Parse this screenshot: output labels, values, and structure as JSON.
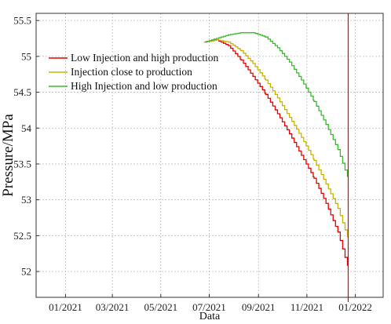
{
  "chart_data": {
    "type": "line",
    "title": "",
    "xlabel": "Data",
    "ylabel": "Pressure/MPa",
    "xlim": [
      "2020-11-25",
      "2022-02-05"
    ],
    "ylim": [
      51.64,
      55.6
    ],
    "x_ticks": [
      {
        "date": "2021-01-01",
        "label": "01/2021"
      },
      {
        "date": "2021-03-01",
        "label": "03/2021"
      },
      {
        "date": "2021-05-01",
        "label": "05/2021"
      },
      {
        "date": "2021-07-01",
        "label": "07/2021"
      },
      {
        "date": "2021-09-01",
        "label": "09/2021"
      },
      {
        "date": "2021-11-01",
        "label": "11/2021"
      },
      {
        "date": "2022-01-01",
        "label": "01/2022"
      }
    ],
    "y_ticks": [
      52,
      52.5,
      53,
      53.5,
      54,
      54.5,
      55,
      55.5
    ],
    "y_tick_labels": [
      "52",
      "52.5",
      "53",
      "53.5",
      "54",
      "54.5",
      "55",
      "55.5"
    ],
    "grid": true,
    "legend_position": "top-left",
    "vertical_marker": {
      "date": "2021-12-23",
      "color": "#e60000"
    },
    "series": [
      {
        "name": "Low Injection and high production",
        "color": "#e60000",
        "points": [
          [
            "2021-06-25",
            55.2
          ],
          [
            "2021-07-10",
            55.23
          ],
          [
            "2021-07-25",
            55.15
          ],
          [
            "2021-08-10",
            54.95
          ],
          [
            "2021-08-25",
            54.72
          ],
          [
            "2021-09-10",
            54.47
          ],
          [
            "2021-09-25",
            54.2
          ],
          [
            "2021-10-10",
            53.92
          ],
          [
            "2021-10-25",
            53.62
          ],
          [
            "2021-11-10",
            53.3
          ],
          [
            "2021-11-25",
            52.95
          ],
          [
            "2021-12-10",
            52.55
          ],
          [
            "2021-12-22",
            52.08
          ]
        ]
      },
      {
        "name": "Injection close to production",
        "color": "#c8b400",
        "points": [
          [
            "2021-06-25",
            55.2
          ],
          [
            "2021-07-10",
            55.23
          ],
          [
            "2021-07-25",
            55.2
          ],
          [
            "2021-08-10",
            55.08
          ],
          [
            "2021-08-25",
            54.9
          ],
          [
            "2021-09-10",
            54.67
          ],
          [
            "2021-09-25",
            54.42
          ],
          [
            "2021-10-10",
            54.15
          ],
          [
            "2021-10-25",
            53.87
          ],
          [
            "2021-11-10",
            53.55
          ],
          [
            "2021-11-25",
            53.22
          ],
          [
            "2021-12-10",
            52.88
          ],
          [
            "2021-12-22",
            52.48
          ]
        ]
      },
      {
        "name": "High Injection and low production",
        "color": "#3cb82e",
        "points": [
          [
            "2021-06-25",
            55.2
          ],
          [
            "2021-07-10",
            55.25
          ],
          [
            "2021-07-25",
            55.3
          ],
          [
            "2021-08-10",
            55.33
          ],
          [
            "2021-08-25",
            55.33
          ],
          [
            "2021-09-10",
            55.27
          ],
          [
            "2021-09-25",
            55.12
          ],
          [
            "2021-10-10",
            54.92
          ],
          [
            "2021-10-25",
            54.67
          ],
          [
            "2021-11-10",
            54.37
          ],
          [
            "2021-11-25",
            54.05
          ],
          [
            "2021-12-10",
            53.7
          ],
          [
            "2021-12-22",
            53.32
          ]
        ]
      }
    ]
  }
}
